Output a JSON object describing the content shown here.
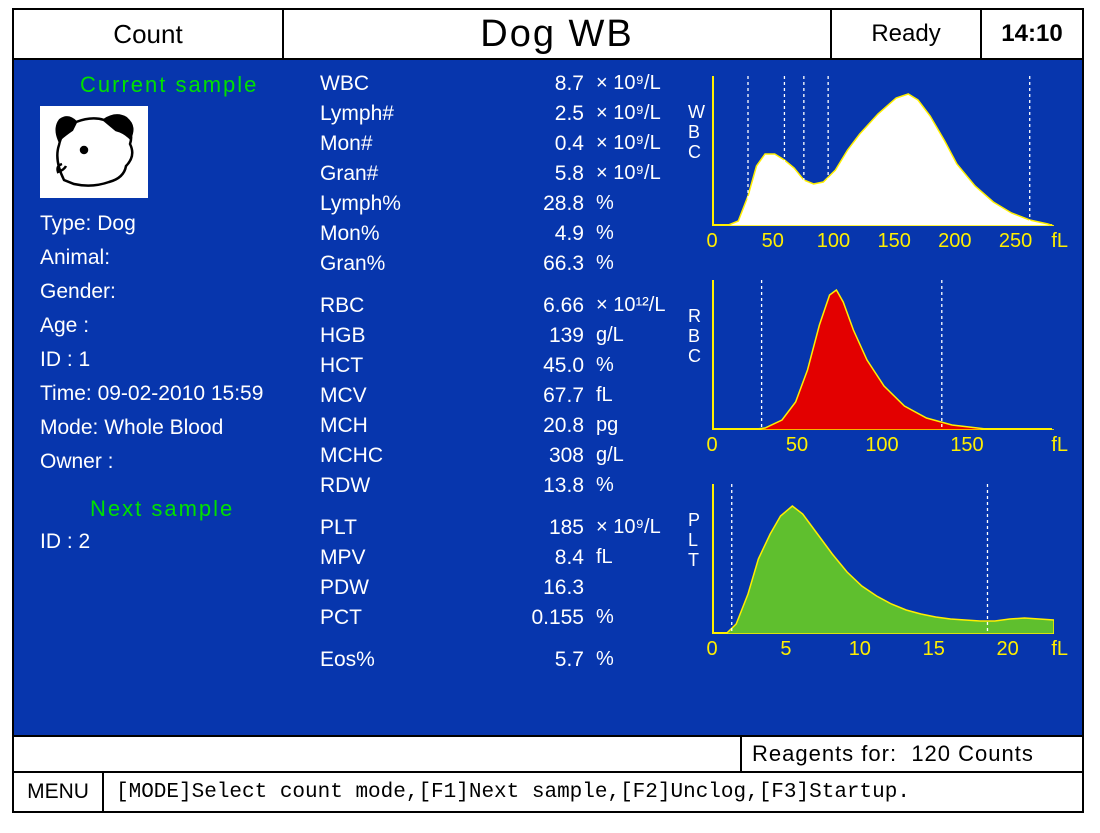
{
  "topbar": {
    "count_label": "Count",
    "title": "Dog   WB",
    "status": "Ready",
    "time": "14:10"
  },
  "headers": {
    "current": "Current sample",
    "next": "Next sample"
  },
  "info": {
    "type_label": "Type:",
    "type_value": "Dog",
    "animal_label": "Animal:",
    "animal_value": "",
    "gender_label": "Gender:",
    "gender_value": "",
    "age_label": "Age  :",
    "age_value": "",
    "id_label": "ID   :",
    "id_value": "1",
    "time_label": "Time:",
    "time_value": "09-02-2010 15:59",
    "mode_label": "Mode:",
    "mode_value": "Whole Blood",
    "owner_label": "Owner :",
    "owner_value": "",
    "next_id_label": "ID   :",
    "next_id_value": "2"
  },
  "params": [
    {
      "name": "WBC",
      "value": "8.7",
      "unit": "× 10⁹/L"
    },
    {
      "name": "Lymph#",
      "value": "2.5",
      "unit": "× 10⁹/L"
    },
    {
      "name": "Mon#",
      "value": "0.4",
      "unit": "× 10⁹/L"
    },
    {
      "name": "Gran#",
      "value": "5.8",
      "unit": "× 10⁹/L"
    },
    {
      "name": "Lymph%",
      "value": "28.8",
      "unit": "%"
    },
    {
      "name": "Mon%",
      "value": "4.9",
      "unit": "%"
    },
    {
      "name": "Gran%",
      "value": "66.3",
      "unit": "%"
    },
    {
      "spacer": true
    },
    {
      "name": "RBC",
      "value": "6.66",
      "unit": "× 10¹²/L"
    },
    {
      "name": "HGB",
      "value": "139",
      "unit": "g/L"
    },
    {
      "name": "HCT",
      "value": "45.0",
      "unit": "%"
    },
    {
      "name": "MCV",
      "value": "67.7",
      "unit": "fL"
    },
    {
      "name": "MCH",
      "value": "20.8",
      "unit": "pg"
    },
    {
      "name": "MCHC",
      "value": "308",
      "unit": "g/L"
    },
    {
      "name": "RDW",
      "value": "13.8",
      "unit": "%"
    },
    {
      "spacer": true
    },
    {
      "name": "PLT",
      "value": "185",
      "unit": "× 10⁹/L"
    },
    {
      "name": "MPV",
      "value": "8.4",
      "unit": "fL"
    },
    {
      "name": "PDW",
      "value": "16.3",
      "unit": ""
    },
    {
      "name": "PCT",
      "value": "0.155",
      "unit": "%"
    },
    {
      "spacer": true
    },
    {
      "name": "Eos%",
      "value": "5.7",
      "unit": "%"
    }
  ],
  "charts": {
    "wbc": {
      "label": [
        "W",
        "B",
        "C"
      ],
      "fill": "#ffffff",
      "stroke": "#ffef00",
      "xmax": 280,
      "xticks": [
        0,
        50,
        100,
        150,
        200,
        250
      ],
      "xunit": "fL",
      "markers": [
        28,
        58,
        74,
        94,
        260
      ],
      "points": [
        [
          0,
          0
        ],
        [
          10,
          0
        ],
        [
          20,
          5
        ],
        [
          28,
          30
        ],
        [
          35,
          60
        ],
        [
          42,
          72
        ],
        [
          50,
          72
        ],
        [
          58,
          66
        ],
        [
          66,
          58
        ],
        [
          74,
          46
        ],
        [
          82,
          42
        ],
        [
          90,
          44
        ],
        [
          100,
          56
        ],
        [
          110,
          76
        ],
        [
          120,
          92
        ],
        [
          135,
          112
        ],
        [
          150,
          128
        ],
        [
          160,
          132
        ],
        [
          168,
          126
        ],
        [
          178,
          110
        ],
        [
          190,
          85
        ],
        [
          200,
          62
        ],
        [
          215,
          40
        ],
        [
          230,
          24
        ],
        [
          245,
          13
        ],
        [
          260,
          6
        ],
        [
          275,
          2
        ],
        [
          280,
          0
        ]
      ]
    },
    "rbc": {
      "label": [
        "R",
        "B",
        "C"
      ],
      "fill": "#e30000",
      "stroke": "#ffef00",
      "xmax": 200,
      "xticks": [
        0,
        50,
        100,
        150
      ],
      "xunit": "fL",
      "markers": [
        28,
        134
      ],
      "points": [
        [
          0,
          0
        ],
        [
          20,
          0
        ],
        [
          30,
          2
        ],
        [
          40,
          10
        ],
        [
          48,
          28
        ],
        [
          55,
          60
        ],
        [
          62,
          105
        ],
        [
          68,
          135
        ],
        [
          72,
          140
        ],
        [
          76,
          128
        ],
        [
          82,
          100
        ],
        [
          90,
          70
        ],
        [
          100,
          44
        ],
        [
          112,
          24
        ],
        [
          125,
          12
        ],
        [
          140,
          5
        ],
        [
          160,
          1
        ],
        [
          200,
          0
        ]
      ]
    },
    "plt": {
      "label": [
        "P",
        "L",
        "T"
      ],
      "fill": "#5fbf2e",
      "stroke": "#ffef00",
      "xmax": 23,
      "xticks": [
        0,
        5,
        10,
        15,
        20
      ],
      "xunit": "fL",
      "markers": [
        1.2,
        18.5
      ],
      "points": [
        [
          0,
          0
        ],
        [
          0.8,
          0
        ],
        [
          1.5,
          10
        ],
        [
          2.3,
          40
        ],
        [
          3.0,
          75
        ],
        [
          3.8,
          100
        ],
        [
          4.5,
          118
        ],
        [
          5.3,
          128
        ],
        [
          6.0,
          120
        ],
        [
          7.0,
          100
        ],
        [
          8.0,
          80
        ],
        [
          9.0,
          62
        ],
        [
          10.0,
          48
        ],
        [
          11.0,
          38
        ],
        [
          12.0,
          30
        ],
        [
          13.0,
          24
        ],
        [
          14.0,
          20
        ],
        [
          15.0,
          17
        ],
        [
          16.0,
          15
        ],
        [
          17.0,
          14
        ],
        [
          18.0,
          13
        ],
        [
          19.0,
          13
        ],
        [
          20.0,
          15
        ],
        [
          21.0,
          16
        ],
        [
          22.0,
          15
        ],
        [
          23.0,
          14
        ]
      ]
    }
  },
  "reagents": {
    "label": "Reagents for:",
    "value": "120 Counts"
  },
  "bottom": {
    "menu": "MENU",
    "help": "[MODE]Select count mode,[F1]Next sample,[F2]Unclog,[F3]Startup."
  },
  "colors": {
    "background": "#0736ad",
    "accent_yellow": "#ffef00",
    "accent_green_text": "#00e000"
  }
}
